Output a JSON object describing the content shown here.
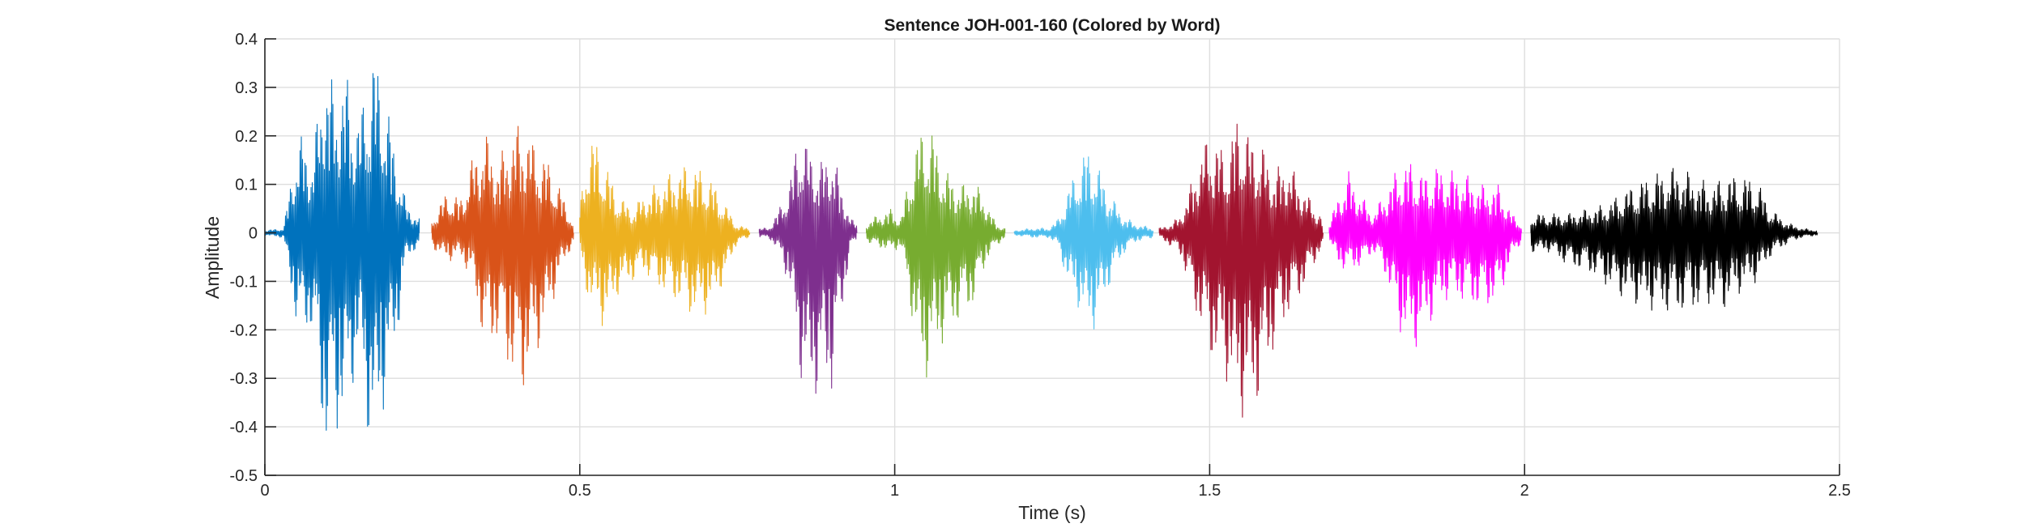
{
  "chart_data": {
    "type": "line",
    "title": "Sentence JOH-001-160 (Colored by Word)",
    "xlabel": "Time (s)",
    "ylabel": "Amplitude",
    "xlim": [
      0,
      2.5
    ],
    "ylim": [
      -0.5,
      0.4
    ],
    "xticks": [
      0,
      0.5,
      1,
      1.5,
      2,
      2.5
    ],
    "xtick_labels": [
      "0",
      "0.5",
      "1",
      "1.5",
      "2",
      "2.5"
    ],
    "yticks": [
      -0.5,
      -0.4,
      -0.3,
      -0.2,
      -0.1,
      0,
      0.1,
      0.2,
      0.3,
      0.4
    ],
    "ytick_labels": [
      "-0.5",
      "-0.4",
      "-0.3",
      "-0.2",
      "-0.1",
      "0",
      "0.1",
      "0.2",
      "0.3",
      "0.4"
    ],
    "grid": true,
    "series": [
      {
        "color": "#0072BD",
        "t_start": 0.0,
        "t_end": 0.245,
        "envelope": [
          [
            0.0,
            0.005,
            -0.005
          ],
          [
            0.03,
            0.01,
            -0.01
          ],
          [
            0.045,
            0.15,
            -0.16
          ],
          [
            0.06,
            0.21,
            -0.22
          ],
          [
            0.075,
            0.15,
            -0.2
          ],
          [
            0.095,
            0.37,
            -0.46
          ],
          [
            0.11,
            0.3,
            -0.43
          ],
          [
            0.13,
            0.33,
            -0.38
          ],
          [
            0.15,
            0.23,
            -0.25
          ],
          [
            0.16,
            0.32,
            -0.4
          ],
          [
            0.175,
            0.38,
            -0.47
          ],
          [
            0.19,
            0.3,
            -0.35
          ],
          [
            0.21,
            0.15,
            -0.22
          ],
          [
            0.225,
            0.06,
            -0.05
          ],
          [
            0.245,
            0.03,
            -0.03
          ]
        ]
      },
      {
        "color": "#D95319",
        "t_start": 0.265,
        "t_end": 0.49,
        "envelope": [
          [
            0.265,
            0.03,
            -0.03
          ],
          [
            0.29,
            0.09,
            -0.06
          ],
          [
            0.31,
            0.07,
            -0.05
          ],
          [
            0.33,
            0.16,
            -0.1
          ],
          [
            0.35,
            0.21,
            -0.25
          ],
          [
            0.37,
            0.15,
            -0.22
          ],
          [
            0.395,
            0.22,
            -0.31
          ],
          [
            0.41,
            0.23,
            -0.33
          ],
          [
            0.43,
            0.18,
            -0.26
          ],
          [
            0.45,
            0.15,
            -0.18
          ],
          [
            0.47,
            0.09,
            -0.08
          ],
          [
            0.49,
            0.02,
            -0.02
          ]
        ]
      },
      {
        "color": "#EDB120",
        "t_start": 0.5,
        "t_end": 0.77,
        "envelope": [
          [
            0.5,
            0.05,
            -0.05
          ],
          [
            0.515,
            0.22,
            -0.15
          ],
          [
            0.54,
            0.15,
            -0.2
          ],
          [
            0.56,
            0.08,
            -0.13
          ],
          [
            0.585,
            0.05,
            -0.1
          ],
          [
            0.6,
            0.08,
            -0.08
          ],
          [
            0.63,
            0.11,
            -0.12
          ],
          [
            0.66,
            0.14,
            -0.15
          ],
          [
            0.685,
            0.14,
            -0.18
          ],
          [
            0.71,
            0.11,
            -0.16
          ],
          [
            0.735,
            0.05,
            -0.08
          ],
          [
            0.75,
            0.015,
            -0.02
          ],
          [
            0.77,
            0.01,
            -0.01
          ]
        ]
      },
      {
        "color": "#7E2F8E",
        "t_start": 0.785,
        "t_end": 0.94,
        "envelope": [
          [
            0.785,
            0.01,
            -0.01
          ],
          [
            0.8,
            0.01,
            -0.01
          ],
          [
            0.82,
            0.06,
            -0.05
          ],
          [
            0.835,
            0.12,
            -0.13
          ],
          [
            0.85,
            0.23,
            -0.3
          ],
          [
            0.865,
            0.17,
            -0.36
          ],
          [
            0.885,
            0.15,
            -0.32
          ],
          [
            0.9,
            0.18,
            -0.33
          ],
          [
            0.915,
            0.1,
            -0.18
          ],
          [
            0.93,
            0.03,
            -0.03
          ],
          [
            0.94,
            0.02,
            -0.02
          ]
        ]
      },
      {
        "color": "#77AC30",
        "t_start": 0.955,
        "t_end": 1.175,
        "envelope": [
          [
            0.955,
            0.02,
            -0.02
          ],
          [
            0.975,
            0.04,
            -0.03
          ],
          [
            0.995,
            0.05,
            -0.04
          ],
          [
            1.01,
            0.03,
            -0.03
          ],
          [
            1.03,
            0.17,
            -0.2
          ],
          [
            1.045,
            0.23,
            -0.32
          ],
          [
            1.06,
            0.21,
            -0.27
          ],
          [
            1.08,
            0.13,
            -0.22
          ],
          [
            1.105,
            0.1,
            -0.18
          ],
          [
            1.125,
            0.11,
            -0.15
          ],
          [
            1.145,
            0.07,
            -0.06
          ],
          [
            1.16,
            0.02,
            -0.03
          ],
          [
            1.175,
            0.01,
            -0.01
          ]
        ]
      },
      {
        "color": "#4DBEEE",
        "t_start": 1.19,
        "t_end": 1.41,
        "envelope": [
          [
            1.19,
            0.005,
            -0.005
          ],
          [
            1.22,
            0.01,
            -0.01
          ],
          [
            1.245,
            0.01,
            -0.01
          ],
          [
            1.26,
            0.03,
            -0.03
          ],
          [
            1.275,
            0.09,
            -0.11
          ],
          [
            1.29,
            0.14,
            -0.15
          ],
          [
            1.305,
            0.18,
            -0.2
          ],
          [
            1.32,
            0.15,
            -0.2
          ],
          [
            1.335,
            0.1,
            -0.13
          ],
          [
            1.36,
            0.04,
            -0.05
          ],
          [
            1.38,
            0.02,
            -0.02
          ],
          [
            1.41,
            0.01,
            -0.01
          ]
        ]
      },
      {
        "color": "#A2142F",
        "t_start": 1.42,
        "t_end": 1.68,
        "envelope": [
          [
            1.42,
            0.01,
            -0.01
          ],
          [
            1.44,
            0.02,
            -0.03
          ],
          [
            1.455,
            0.04,
            -0.05
          ],
          [
            1.47,
            0.1,
            -0.13
          ],
          [
            1.49,
            0.19,
            -0.22
          ],
          [
            1.51,
            0.2,
            -0.28
          ],
          [
            1.525,
            0.16,
            -0.3
          ],
          [
            1.545,
            0.25,
            -0.38
          ],
          [
            1.565,
            0.2,
            -0.39
          ],
          [
            1.585,
            0.18,
            -0.32
          ],
          [
            1.6,
            0.13,
            -0.25
          ],
          [
            1.625,
            0.15,
            -0.17
          ],
          [
            1.645,
            0.1,
            -0.13
          ],
          [
            1.66,
            0.07,
            -0.08
          ],
          [
            1.68,
            0.03,
            -0.03
          ]
        ]
      },
      {
        "color": "#FF00FF",
        "t_start": 1.69,
        "t_end": 1.995,
        "envelope": [
          [
            1.69,
            0.02,
            -0.02
          ],
          [
            1.705,
            0.08,
            -0.07
          ],
          [
            1.72,
            0.13,
            -0.08
          ],
          [
            1.74,
            0.08,
            -0.07
          ],
          [
            1.76,
            0.04,
            -0.04
          ],
          [
            1.78,
            0.09,
            -0.09
          ],
          [
            1.8,
            0.14,
            -0.2
          ],
          [
            1.82,
            0.15,
            -0.25
          ],
          [
            1.84,
            0.12,
            -0.22
          ],
          [
            1.86,
            0.14,
            -0.16
          ],
          [
            1.885,
            0.13,
            -0.13
          ],
          [
            1.91,
            0.12,
            -0.15
          ],
          [
            1.935,
            0.1,
            -0.16
          ],
          [
            1.96,
            0.1,
            -0.14
          ],
          [
            1.98,
            0.04,
            -0.05
          ],
          [
            1.995,
            0.02,
            -0.02
          ]
        ]
      },
      {
        "color": "#000000",
        "t_start": 2.01,
        "t_end": 2.465,
        "envelope": [
          [
            2.01,
            0.04,
            -0.04
          ],
          [
            2.04,
            0.04,
            -0.04
          ],
          [
            2.07,
            0.04,
            -0.07
          ],
          [
            2.1,
            0.05,
            -0.08
          ],
          [
            2.13,
            0.06,
            -0.11
          ],
          [
            2.16,
            0.09,
            -0.14
          ],
          [
            2.2,
            0.12,
            -0.16
          ],
          [
            2.24,
            0.14,
            -0.17
          ],
          [
            2.27,
            0.12,
            -0.16
          ],
          [
            2.295,
            0.1,
            -0.15
          ],
          [
            2.32,
            0.12,
            -0.16
          ],
          [
            2.345,
            0.12,
            -0.12
          ],
          [
            2.37,
            0.11,
            -0.1
          ],
          [
            2.39,
            0.05,
            -0.05
          ],
          [
            2.42,
            0.02,
            -0.02
          ],
          [
            2.44,
            0.01,
            -0.01
          ],
          [
            2.465,
            0.005,
            -0.005
          ]
        ]
      }
    ]
  }
}
